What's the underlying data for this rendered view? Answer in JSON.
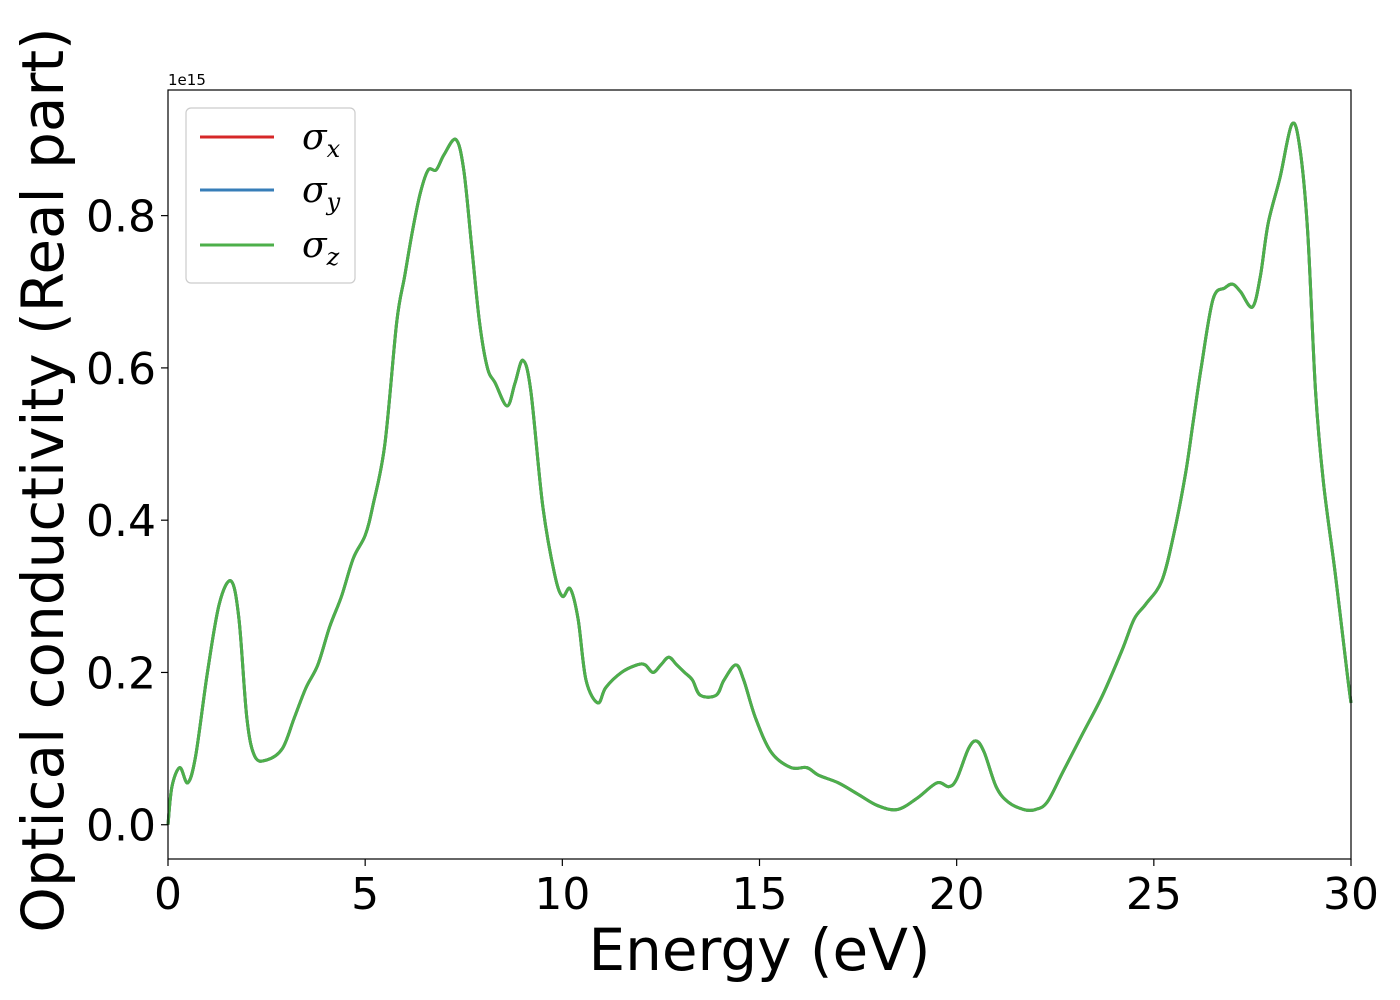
{
  "chart_data": {
    "type": "line",
    "title": "",
    "xlabel": "Energy (eV)",
    "ylabel": "Optical conductivity (Real part)",
    "y_offset_text": "1e15",
    "xlim": [
      0,
      30
    ],
    "ylim": [
      -0.045,
      0.965
    ],
    "x_ticks": [
      0,
      5,
      10,
      15,
      20,
      25,
      30
    ],
    "x_tick_labels": [
      "0",
      "5",
      "10",
      "15",
      "20",
      "25",
      "30"
    ],
    "y_ticks": [
      0.0,
      0.2,
      0.4,
      0.6,
      0.8
    ],
    "y_tick_labels": [
      "0.0",
      "0.2",
      "0.4",
      "0.6",
      "0.8"
    ],
    "grid": false,
    "legend_position": "top-left",
    "x": [
      0,
      0.1,
      0.3,
      0.5,
      0.7,
      1.0,
      1.3,
      1.6,
      1.8,
      2.0,
      2.2,
      2.5,
      2.9,
      3.2,
      3.5,
      3.8,
      4.1,
      4.4,
      4.7,
      5.0,
      5.2,
      5.5,
      5.8,
      6.0,
      6.2,
      6.4,
      6.6,
      6.8,
      7.0,
      7.3,
      7.5,
      7.7,
      7.9,
      8.1,
      8.3,
      8.6,
      8.8,
      9.0,
      9.2,
      9.5,
      9.8,
      10.0,
      10.2,
      10.4,
      10.6,
      10.9,
      11.1,
      11.5,
      11.9,
      12.1,
      12.3,
      12.5,
      12.7,
      12.9,
      13.1,
      13.3,
      13.5,
      13.9,
      14.1,
      14.4,
      14.6,
      14.9,
      15.3,
      15.8,
      16.2,
      16.5,
      17.0,
      17.5,
      18.0,
      18.5,
      19.0,
      19.5,
      19.8,
      20.0,
      20.3,
      20.5,
      20.7,
      21.0,
      21.3,
      21.7,
      22.0,
      22.3,
      22.7,
      23.2,
      23.7,
      24.2,
      24.5,
      24.8,
      25.2,
      25.5,
      25.8,
      26.0,
      26.2,
      26.5,
      26.8,
      27.0,
      27.2,
      27.5,
      27.7,
      27.9,
      28.2,
      28.5,
      28.7,
      28.9,
      29.1,
      29.3,
      29.6,
      29.9,
      30.0
    ],
    "series": [
      {
        "name": "σx",
        "color": "#d62728",
        "values": [
          0.0,
          0.05,
          0.075,
          0.055,
          0.09,
          0.2,
          0.29,
          0.32,
          0.27,
          0.14,
          0.09,
          0.085,
          0.1,
          0.14,
          0.18,
          0.21,
          0.26,
          0.3,
          0.35,
          0.38,
          0.42,
          0.5,
          0.66,
          0.72,
          0.78,
          0.83,
          0.86,
          0.86,
          0.88,
          0.9,
          0.86,
          0.76,
          0.66,
          0.6,
          0.58,
          0.55,
          0.58,
          0.61,
          0.57,
          0.42,
          0.33,
          0.3,
          0.31,
          0.27,
          0.19,
          0.16,
          0.18,
          0.2,
          0.21,
          0.21,
          0.2,
          0.21,
          0.22,
          0.21,
          0.2,
          0.19,
          0.17,
          0.17,
          0.19,
          0.21,
          0.19,
          0.14,
          0.095,
          0.075,
          0.075,
          0.065,
          0.055,
          0.04,
          0.025,
          0.02,
          0.035,
          0.055,
          0.05,
          0.06,
          0.1,
          0.11,
          0.095,
          0.05,
          0.03,
          0.02,
          0.02,
          0.03,
          0.07,
          0.12,
          0.17,
          0.23,
          0.27,
          0.29,
          0.32,
          0.38,
          0.46,
          0.53,
          0.6,
          0.69,
          0.705,
          0.71,
          0.7,
          0.68,
          0.72,
          0.79,
          0.85,
          0.92,
          0.89,
          0.78,
          0.57,
          0.45,
          0.33,
          0.2,
          0.16
        ]
      },
      {
        "name": "σy",
        "color": "#377eb8",
        "values": [
          0.0,
          0.05,
          0.075,
          0.055,
          0.09,
          0.2,
          0.29,
          0.32,
          0.27,
          0.14,
          0.09,
          0.085,
          0.1,
          0.14,
          0.18,
          0.21,
          0.26,
          0.3,
          0.35,
          0.38,
          0.42,
          0.5,
          0.66,
          0.72,
          0.78,
          0.83,
          0.86,
          0.86,
          0.88,
          0.9,
          0.86,
          0.76,
          0.66,
          0.6,
          0.58,
          0.55,
          0.58,
          0.61,
          0.57,
          0.42,
          0.33,
          0.3,
          0.31,
          0.27,
          0.19,
          0.16,
          0.18,
          0.2,
          0.21,
          0.21,
          0.2,
          0.21,
          0.22,
          0.21,
          0.2,
          0.19,
          0.17,
          0.17,
          0.19,
          0.21,
          0.19,
          0.14,
          0.095,
          0.075,
          0.075,
          0.065,
          0.055,
          0.04,
          0.025,
          0.02,
          0.035,
          0.055,
          0.05,
          0.06,
          0.1,
          0.11,
          0.095,
          0.05,
          0.03,
          0.02,
          0.02,
          0.03,
          0.07,
          0.12,
          0.17,
          0.23,
          0.27,
          0.29,
          0.32,
          0.38,
          0.46,
          0.53,
          0.6,
          0.69,
          0.705,
          0.71,
          0.7,
          0.68,
          0.72,
          0.79,
          0.85,
          0.92,
          0.89,
          0.78,
          0.57,
          0.45,
          0.33,
          0.2,
          0.16
        ]
      },
      {
        "name": "σz",
        "color": "#4daf4a",
        "values": [
          0.0,
          0.05,
          0.075,
          0.055,
          0.09,
          0.2,
          0.29,
          0.32,
          0.27,
          0.14,
          0.09,
          0.085,
          0.1,
          0.14,
          0.18,
          0.21,
          0.26,
          0.3,
          0.35,
          0.38,
          0.42,
          0.5,
          0.66,
          0.72,
          0.78,
          0.83,
          0.86,
          0.86,
          0.88,
          0.9,
          0.86,
          0.76,
          0.66,
          0.6,
          0.58,
          0.55,
          0.58,
          0.61,
          0.57,
          0.42,
          0.33,
          0.3,
          0.31,
          0.27,
          0.19,
          0.16,
          0.18,
          0.2,
          0.21,
          0.21,
          0.2,
          0.21,
          0.22,
          0.21,
          0.2,
          0.19,
          0.17,
          0.17,
          0.19,
          0.21,
          0.19,
          0.14,
          0.095,
          0.075,
          0.075,
          0.065,
          0.055,
          0.04,
          0.025,
          0.02,
          0.035,
          0.055,
          0.05,
          0.06,
          0.1,
          0.11,
          0.095,
          0.05,
          0.03,
          0.02,
          0.02,
          0.03,
          0.07,
          0.12,
          0.17,
          0.23,
          0.27,
          0.29,
          0.32,
          0.38,
          0.46,
          0.53,
          0.6,
          0.69,
          0.705,
          0.71,
          0.7,
          0.68,
          0.72,
          0.79,
          0.85,
          0.92,
          0.89,
          0.78,
          0.57,
          0.45,
          0.33,
          0.2,
          0.16
        ]
      }
    ],
    "legend": {
      "entries": [
        {
          "symbol": "σ",
          "sub": "x",
          "color": "#d62728"
        },
        {
          "symbol": "σ",
          "sub": "y",
          "color": "#377eb8"
        },
        {
          "symbol": "σ",
          "sub": "z",
          "color": "#4daf4a"
        }
      ]
    }
  }
}
